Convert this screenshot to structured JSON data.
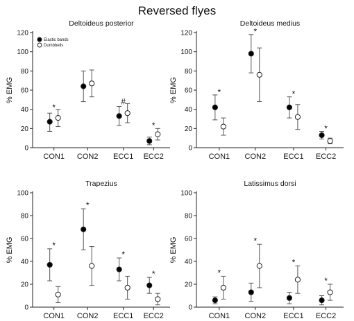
{
  "suptitle": "Reversed flyes",
  "colors": {
    "elastic_bands": "#000000",
    "dumbbells": "#ffffff",
    "axis": "#222222"
  },
  "chart_data": [
    {
      "type": "scatter",
      "title": "Deltoideus posterior",
      "ylabel": "% EMG",
      "ylim": [
        0,
        120
      ],
      "yticks": [
        0,
        20,
        40,
        60,
        80,
        100,
        120
      ],
      "categories": [
        "CON1",
        "CON2",
        "ECC1",
        "ECC2"
      ],
      "legend": {
        "placement": "top-left",
        "entries": [
          "Elastic bands",
          "Dumbbells"
        ]
      },
      "series": [
        {
          "name": "Elastic bands",
          "marker": "filled-circle",
          "values": [
            27,
            64,
            33,
            7
          ],
          "err_low": [
            17,
            48,
            23,
            3
          ],
          "err_high": [
            36,
            80,
            43,
            11
          ]
        },
        {
          "name": "Dumbbells",
          "marker": "open-circle",
          "values": [
            31,
            67,
            36,
            14
          ],
          "err_low": [
            22,
            53,
            26,
            8
          ],
          "err_high": [
            40,
            81,
            46,
            20
          ]
        }
      ],
      "annotations": [
        {
          "category": "CON1",
          "text": "*",
          "y": 42
        },
        {
          "category": "ECC1",
          "text": "#",
          "y": 48
        },
        {
          "category": "ECC2",
          "text": "*",
          "y": 23
        }
      ]
    },
    {
      "type": "scatter",
      "title": "Deltoideus medius",
      "ylabel": "% EMG",
      "ylim": [
        0,
        120
      ],
      "yticks": [
        0,
        20,
        40,
        60,
        80,
        100,
        120
      ],
      "categories": [
        "CON1",
        "CON2",
        "ECC1",
        "ECC2"
      ],
      "series": [
        {
          "name": "Elastic bands",
          "marker": "filled-circle",
          "values": [
            42,
            98,
            42,
            13
          ],
          "err_low": [
            29,
            78,
            31,
            9
          ],
          "err_high": [
            55,
            118,
            53,
            17
          ]
        },
        {
          "name": "Dumbbells",
          "marker": "open-circle",
          "values": [
            22,
            76,
            32,
            7
          ],
          "err_low": [
            13,
            48,
            19,
            4
          ],
          "err_high": [
            31,
            104,
            45,
            10
          ]
        }
      ],
      "annotations": [
        {
          "category": "CON1",
          "text": "*",
          "y": 58
        },
        {
          "category": "CON2",
          "text": "*",
          "y": 121
        },
        {
          "category": "ECC1",
          "text": "*",
          "y": 56
        },
        {
          "category": "ECC2",
          "text": "*",
          "y": 20
        }
      ]
    },
    {
      "type": "scatter",
      "title": "Trapezius",
      "ylabel": "% EMG",
      "ylim": [
        0,
        100
      ],
      "yticks": [
        0,
        20,
        40,
        60,
        80,
        100
      ],
      "categories": [
        "CON1",
        "CON2",
        "ECC1",
        "ECC2"
      ],
      "series": [
        {
          "name": "Elastic bands",
          "marker": "filled-circle",
          "values": [
            37,
            68,
            33,
            19
          ],
          "err_low": [
            23,
            50,
            23,
            12
          ],
          "err_high": [
            51,
            86,
            43,
            26
          ]
        },
        {
          "name": "Dumbbells",
          "marker": "open-circle",
          "values": [
            11,
            36,
            17,
            7
          ],
          "err_low": [
            4,
            19,
            7,
            2
          ],
          "err_high": [
            18,
            53,
            27,
            12
          ]
        }
      ],
      "annotations": [
        {
          "category": "CON1",
          "text": "*",
          "y": 54
        },
        {
          "category": "CON2",
          "text": "*",
          "y": 89
        },
        {
          "category": "ECC1",
          "text": "*",
          "y": 46
        },
        {
          "category": "ECC2",
          "text": "*",
          "y": 29
        }
      ]
    },
    {
      "type": "scatter",
      "title": "Latissimus dorsi",
      "ylabel": "% EMG",
      "ylim": [
        0,
        100
      ],
      "yticks": [
        0,
        20,
        40,
        60,
        80,
        100
      ],
      "categories": [
        "CON1",
        "CON2",
        "ECC1",
        "ECC2"
      ],
      "series": [
        {
          "name": "Elastic bands",
          "marker": "filled-circle",
          "values": [
            6,
            13,
            8,
            6
          ],
          "err_low": [
            3,
            5,
            3,
            2
          ],
          "err_high": [
            9,
            21,
            13,
            10
          ]
        },
        {
          "name": "Dumbbells",
          "marker": "open-circle",
          "values": [
            17,
            36,
            24,
            13
          ],
          "err_low": [
            7,
            17,
            12,
            6
          ],
          "err_high": [
            27,
            55,
            36,
            20
          ]
        }
      ],
      "annotations": [
        {
          "category": "CON1",
          "text": "*",
          "y": 30
        },
        {
          "category": "CON2",
          "text": "*",
          "y": 58
        },
        {
          "category": "ECC1",
          "text": "*",
          "y": 39
        },
        {
          "category": "ECC2",
          "text": "*",
          "y": 23
        }
      ]
    }
  ]
}
